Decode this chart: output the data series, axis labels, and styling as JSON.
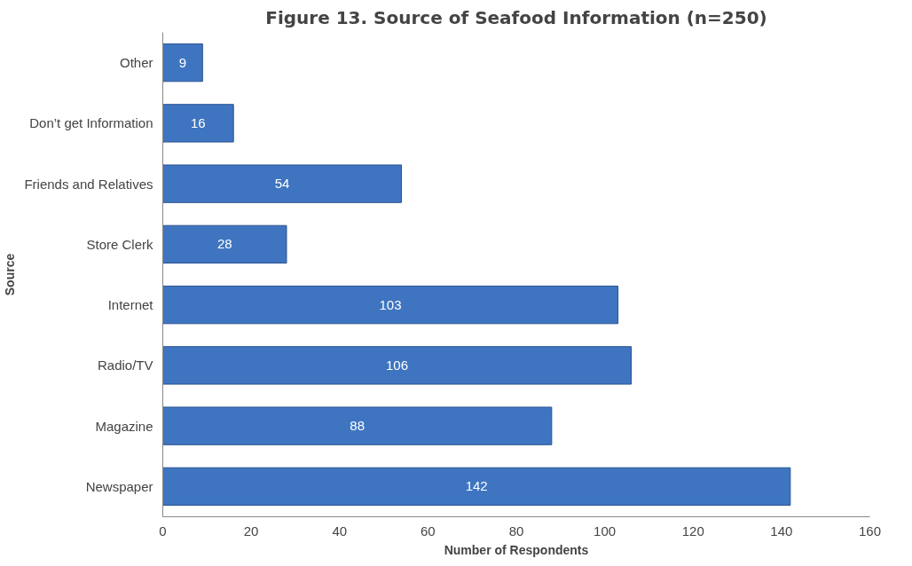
{
  "chart_data": {
    "type": "bar",
    "orientation": "horizontal",
    "title": "Figure 13. Source of Seafood Information (n=250)",
    "xlabel": "Number of Respondents",
    "ylabel": "Source",
    "categories": [
      "Other",
      "Don’t get Information",
      "Friends and Relatives",
      "Store Clerk",
      "Internet",
      "Radio/TV",
      "Magazine",
      "Newspaper"
    ],
    "values": [
      9,
      16,
      54,
      28,
      103,
      106,
      88,
      142
    ],
    "color": "#3f75c0",
    "xlim": [
      0,
      160
    ],
    "xticks": [
      0,
      20,
      40,
      60,
      80,
      100,
      120,
      140,
      160
    ],
    "grid": false,
    "data_labels": true
  }
}
